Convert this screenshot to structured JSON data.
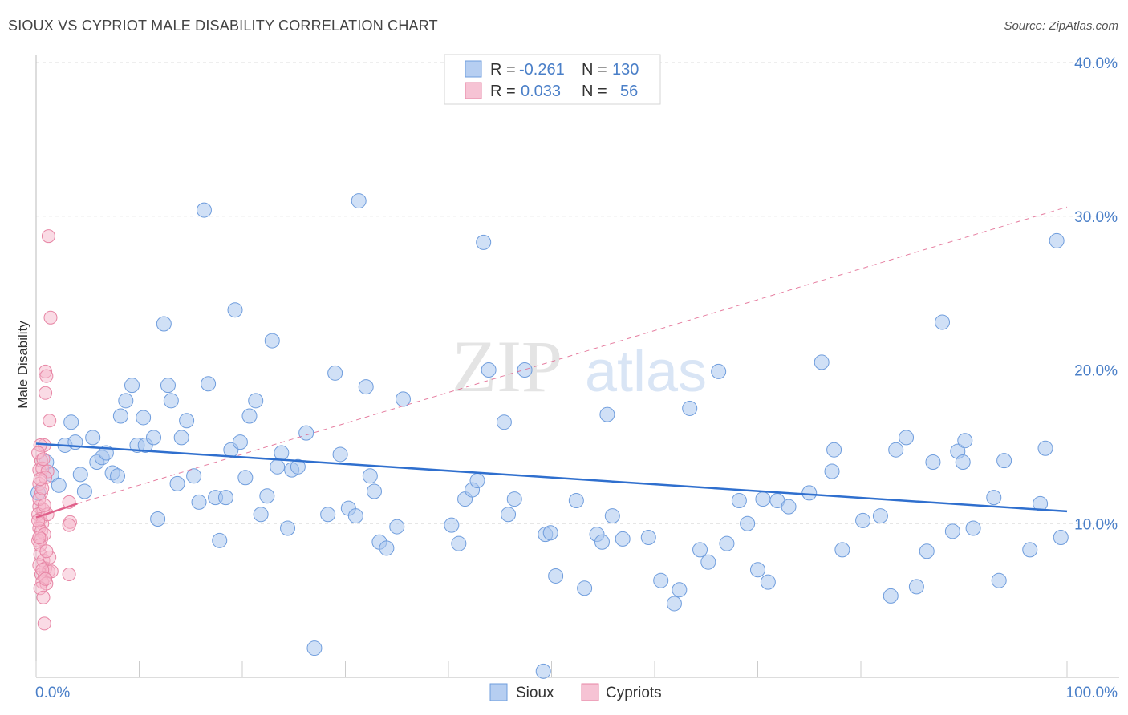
{
  "title": "SIOUX VS CYPRIOT MALE DISABILITY CORRELATION CHART",
  "source": "Source: ZipAtlas.com",
  "watermark": {
    "zip": "ZIP",
    "atlas": "atlas"
  },
  "colors": {
    "sioux_fill": "#a9c6ee",
    "sioux_stroke": "#6f9ddd",
    "sioux_line": "#2f6fce",
    "cypriot_fill": "#f5b8cc",
    "cypriot_stroke": "#e786a5",
    "cypriot_line": "#e0608a",
    "label_blue": "#4a7fc8",
    "grid": "#dddddd"
  },
  "legend": {
    "rows": [
      {
        "r_label": "R =",
        "r_value": "-0.261",
        "n_label": "N =",
        "n_value": "130"
      },
      {
        "r_label": "R =",
        "r_value": "0.033",
        "n_label": "N =",
        "n_value": "56"
      }
    ]
  },
  "chart_data": {
    "type": "scatter",
    "xlabel": "",
    "ylabel": "Male Disability",
    "xlim": [
      0,
      100
    ],
    "ylim": [
      0,
      40
    ],
    "x_tick_labels": [
      "0.0%",
      "100.0%"
    ],
    "y_ticks": [
      10,
      20,
      30,
      40
    ],
    "y_tick_labels": [
      "10.0%",
      "20.0%",
      "30.0%",
      "40.0%"
    ],
    "grid": "horizontal dashed",
    "legend_placement": "bottom-center",
    "series": [
      {
        "name": "Sioux",
        "trend": {
          "x": [
            0,
            100
          ],
          "y": [
            15.2,
            10.8
          ]
        },
        "points": [
          [
            0.2,
            12.0
          ],
          [
            1.0,
            14.0
          ],
          [
            1.5,
            13.2
          ],
          [
            2.2,
            12.5
          ],
          [
            2.8,
            15.1
          ],
          [
            3.4,
            16.6
          ],
          [
            3.8,
            15.3
          ],
          [
            4.3,
            13.2
          ],
          [
            4.7,
            12.1
          ],
          [
            5.5,
            15.6
          ],
          [
            5.9,
            14.0
          ],
          [
            6.4,
            14.3
          ],
          [
            6.8,
            14.6
          ],
          [
            7.4,
            13.3
          ],
          [
            7.9,
            13.1
          ],
          [
            8.2,
            17.0
          ],
          [
            8.7,
            18.0
          ],
          [
            9.3,
            19.0
          ],
          [
            9.8,
            15.1
          ],
          [
            10.4,
            16.9
          ],
          [
            10.6,
            15.1
          ],
          [
            11.4,
            15.6
          ],
          [
            11.8,
            10.3
          ],
          [
            12.4,
            23.0
          ],
          [
            12.8,
            19.0
          ],
          [
            13.1,
            18.0
          ],
          [
            13.7,
            12.6
          ],
          [
            14.1,
            15.6
          ],
          [
            14.6,
            16.7
          ],
          [
            15.3,
            13.1
          ],
          [
            15.8,
            11.4
          ],
          [
            16.3,
            30.4
          ],
          [
            16.7,
            19.1
          ],
          [
            17.4,
            11.7
          ],
          [
            17.8,
            8.9
          ],
          [
            18.4,
            11.7
          ],
          [
            18.9,
            14.8
          ],
          [
            19.3,
            23.9
          ],
          [
            19.8,
            15.3
          ],
          [
            20.3,
            13.0
          ],
          [
            20.7,
            17.0
          ],
          [
            21.3,
            18.0
          ],
          [
            21.8,
            10.6
          ],
          [
            22.4,
            11.8
          ],
          [
            22.9,
            21.9
          ],
          [
            23.4,
            13.7
          ],
          [
            23.8,
            14.6
          ],
          [
            24.4,
            9.7
          ],
          [
            24.8,
            13.5
          ],
          [
            25.4,
            13.7
          ],
          [
            26.2,
            15.9
          ],
          [
            27.0,
            1.9
          ],
          [
            28.3,
            10.6
          ],
          [
            29.0,
            19.8
          ],
          [
            29.5,
            14.5
          ],
          [
            30.3,
            11.0
          ],
          [
            31.0,
            10.5
          ],
          [
            31.3,
            31.0
          ],
          [
            32.0,
            18.9
          ],
          [
            32.4,
            13.1
          ],
          [
            32.8,
            12.1
          ],
          [
            33.3,
            8.8
          ],
          [
            34.0,
            8.4
          ],
          [
            35.0,
            9.8
          ],
          [
            35.6,
            18.1
          ],
          [
            40.3,
            9.9
          ],
          [
            41.0,
            8.7
          ],
          [
            41.6,
            11.6
          ],
          [
            42.3,
            12.2
          ],
          [
            43.4,
            28.3
          ],
          [
            43.9,
            20.0
          ],
          [
            45.4,
            16.6
          ],
          [
            45.8,
            10.6
          ],
          [
            46.4,
            11.6
          ],
          [
            47.4,
            20.0
          ],
          [
            49.4,
            9.3
          ],
          [
            49.9,
            9.4
          ],
          [
            50.4,
            6.6
          ],
          [
            52.4,
            11.5
          ],
          [
            53.2,
            5.8
          ],
          [
            54.4,
            9.3
          ],
          [
            54.9,
            8.8
          ],
          [
            55.4,
            17.1
          ],
          [
            55.9,
            10.5
          ],
          [
            56.9,
            9.0
          ],
          [
            59.4,
            9.1
          ],
          [
            60.6,
            6.3
          ],
          [
            61.9,
            4.8
          ],
          [
            62.4,
            5.7
          ],
          [
            63.4,
            17.5
          ],
          [
            64.4,
            8.3
          ],
          [
            65.2,
            7.5
          ],
          [
            66.2,
            19.9
          ],
          [
            67.0,
            8.7
          ],
          [
            68.2,
            11.5
          ],
          [
            69.0,
            10.0
          ],
          [
            70.0,
            7.0
          ],
          [
            70.5,
            11.6
          ],
          [
            71.0,
            6.2
          ],
          [
            71.9,
            11.5
          ],
          [
            73.0,
            11.1
          ],
          [
            75.0,
            12.0
          ],
          [
            76.2,
            20.5
          ],
          [
            77.4,
            14.8
          ],
          [
            77.2,
            13.4
          ],
          [
            78.2,
            8.3
          ],
          [
            80.2,
            10.2
          ],
          [
            81.9,
            10.5
          ],
          [
            82.9,
            5.3
          ],
          [
            83.4,
            14.8
          ],
          [
            84.4,
            15.6
          ],
          [
            85.4,
            5.9
          ],
          [
            86.4,
            8.2
          ],
          [
            87.0,
            14.0
          ],
          [
            87.9,
            23.1
          ],
          [
            88.9,
            9.5
          ],
          [
            89.4,
            14.7
          ],
          [
            89.9,
            14.0
          ],
          [
            90.1,
            15.4
          ],
          [
            90.9,
            9.7
          ],
          [
            92.9,
            11.7
          ],
          [
            93.4,
            6.3
          ],
          [
            93.9,
            14.1
          ],
          [
            96.4,
            8.3
          ],
          [
            97.4,
            11.3
          ],
          [
            97.9,
            14.9
          ],
          [
            99.0,
            28.4
          ],
          [
            99.4,
            9.1
          ],
          [
            49.2,
            0.4
          ],
          [
            42.8,
            12.8
          ]
        ]
      },
      {
        "name": "Cypriots",
        "trend": {
          "x": [
            0,
            4
          ],
          "y": [
            10.4,
            11.3
          ]
        },
        "trend_extended": {
          "x": [
            4,
            100
          ],
          "y": [
            11.3,
            30.6
          ]
        },
        "points": [
          [
            0.3,
            13.5
          ],
          [
            0.5,
            14.1
          ],
          [
            0.8,
            15.1
          ],
          [
            1.2,
            28.7
          ],
          [
            1.4,
            23.4
          ],
          [
            0.9,
            19.9
          ],
          [
            1.0,
            19.6
          ],
          [
            0.9,
            18.5
          ],
          [
            1.3,
            16.7
          ],
          [
            0.4,
            15.1
          ],
          [
            0.6,
            13.6
          ],
          [
            1.1,
            13.4
          ],
          [
            0.3,
            12.6
          ],
          [
            0.5,
            12.0
          ],
          [
            0.3,
            11.1
          ],
          [
            0.7,
            10.9
          ],
          [
            0.2,
            10.6
          ],
          [
            0.4,
            10.3
          ],
          [
            0.6,
            10.0
          ],
          [
            0.3,
            9.7
          ],
          [
            0.5,
            9.5
          ],
          [
            0.8,
            9.3
          ],
          [
            0.2,
            8.9
          ],
          [
            0.4,
            8.0
          ],
          [
            0.7,
            7.6
          ],
          [
            0.3,
            7.3
          ],
          [
            0.9,
            7.1
          ],
          [
            1.2,
            6.9
          ],
          [
            0.5,
            6.7
          ],
          [
            0.8,
            6.5
          ],
          [
            0.6,
            6.2
          ],
          [
            1.0,
            6.1
          ],
          [
            0.4,
            5.8
          ],
          [
            0.7,
            5.2
          ],
          [
            0.8,
            3.5
          ],
          [
            3.2,
            11.4
          ],
          [
            3.3,
            10.1
          ],
          [
            3.2,
            9.9
          ],
          [
            3.2,
            6.7
          ],
          [
            1.5,
            6.9
          ],
          [
            0.3,
            11.6
          ],
          [
            0.6,
            12.3
          ],
          [
            0.9,
            13.0
          ],
          [
            0.2,
            14.6
          ],
          [
            0.5,
            9.0
          ],
          [
            1.1,
            10.6
          ],
          [
            0.8,
            11.2
          ],
          [
            0.4,
            8.6
          ],
          [
            1.3,
            7.8
          ],
          [
            0.6,
            7.0
          ],
          [
            0.9,
            6.4
          ],
          [
            0.2,
            10.2
          ],
          [
            0.4,
            12.9
          ],
          [
            0.7,
            14.2
          ],
          [
            1.0,
            8.2
          ],
          [
            0.3,
            9.1
          ]
        ]
      }
    ]
  }
}
